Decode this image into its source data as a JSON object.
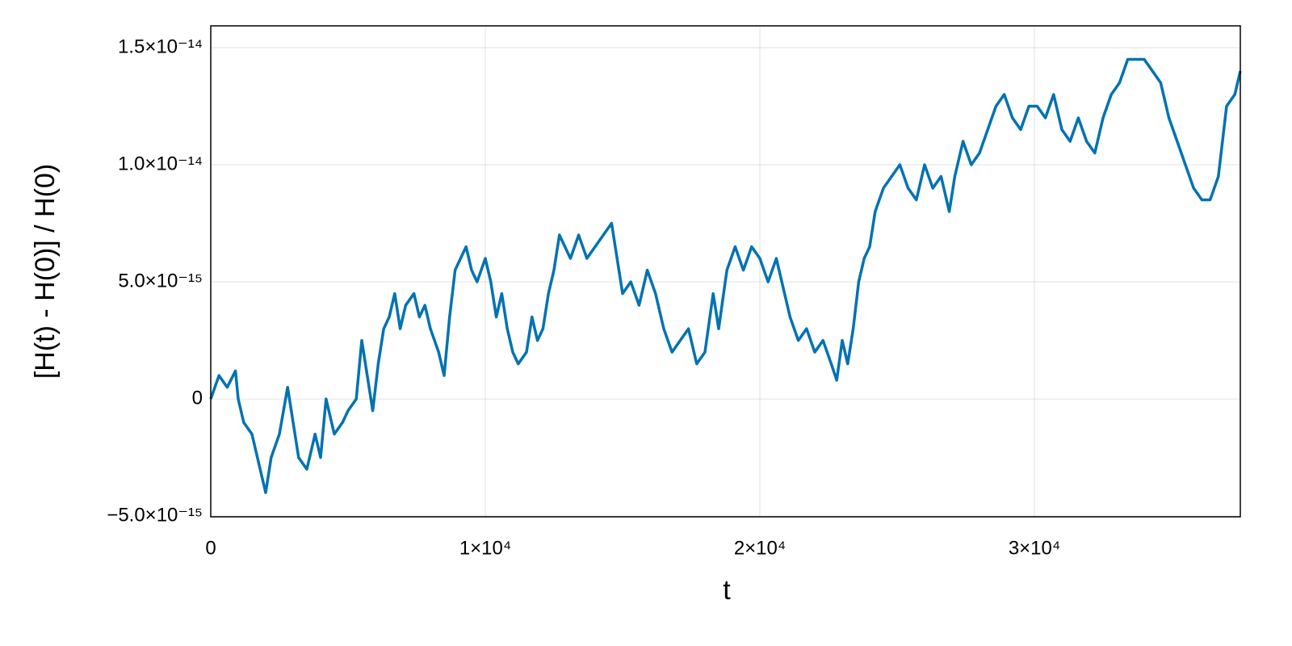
{
  "chart_data": {
    "type": "line",
    "xlabel": "t",
    "ylabel": "[H(t) - H(0)] / H(0)",
    "color": "#0072b2",
    "grid": true,
    "xlim": [
      0,
      37500
    ],
    "xticks": [
      0,
      {
        "value": 10000,
        "label": "1×10⁴"
      },
      {
        "value": 20000,
        "label": "2×10⁴"
      },
      {
        "value": 30000,
        "label": "3×10⁴"
      }
    ],
    "ylim": [
      -5.03e-15,
      1.593e-14
    ],
    "yticks": [
      {
        "value": -5e-15,
        "label": "−5.0×10⁻¹⁵"
      },
      0,
      {
        "value": 5e-15,
        "label": "5.0×10⁻¹⁵"
      },
      {
        "value": 1e-14,
        "label": "1.0×10⁻¹⁴"
      },
      {
        "value": 1.5e-14,
        "label": "1.5×10⁻¹⁴"
      }
    ],
    "x": [
      0,
      300,
      600,
      900,
      1000,
      1200,
      1500,
      1700,
      1900,
      2000,
      2200,
      2500,
      2800,
      3000,
      3200,
      3500,
      3800,
      4000,
      4200,
      4500,
      4800,
      5000,
      5300,
      5500,
      5700,
      5900,
      6100,
      6300,
      6500,
      6700,
      6900,
      7100,
      7400,
      7600,
      7800,
      8000,
      8300,
      8500,
      8700,
      8900,
      9100,
      9300,
      9500,
      9700,
      10000,
      10200,
      10400,
      10600,
      10800,
      11000,
      11200,
      11500,
      11700,
      11900,
      12100,
      12300,
      12500,
      12700,
      12900,
      13100,
      13400,
      13700,
      14000,
      14300,
      14600,
      14800,
      15000,
      15300,
      15600,
      15900,
      16200,
      16500,
      16800,
      17100,
      17400,
      17700,
      18000,
      18300,
      18500,
      18800,
      19100,
      19400,
      19700,
      20000,
      20300,
      20600,
      20900,
      21100,
      21400,
      21700,
      22000,
      22300,
      22600,
      22800,
      23000,
      23200,
      23400,
      23600,
      23800,
      24000,
      24200,
      24500,
      24800,
      25100,
      25400,
      25700,
      26000,
      26300,
      26600,
      26900,
      27100,
      27400,
      27700,
      28000,
      28300,
      28600,
      28900,
      29200,
      29500,
      29800,
      30100,
      30400,
      30700,
      31000,
      31300,
      31600,
      31900,
      32200,
      32500,
      32800,
      33100,
      33400,
      33700,
      34000,
      34300,
      34600,
      34900,
      35200,
      35500,
      35800,
      36100,
      36400,
      36700,
      37000,
      37300,
      37500
    ],
    "values": [
      0,
      1e-15,
      5e-16,
      1.2e-15,
      0,
      -1e-15,
      -1.5e-15,
      -2.5e-15,
      -3.5e-15,
      -4e-15,
      -2.5e-15,
      -1.5e-15,
      5e-16,
      -1e-15,
      -2.5e-15,
      -3e-15,
      -1.5e-15,
      -2.5e-15,
      0,
      -1.5e-15,
      -1e-15,
      -5e-16,
      0,
      2.5e-15,
      1e-15,
      -5e-16,
      1.5e-15,
      3e-15,
      3.5e-15,
      4.5e-15,
      3e-15,
      4e-15,
      4.5e-15,
      3.5e-15,
      4e-15,
      3e-15,
      2e-15,
      1e-15,
      3.5e-15,
      5.5e-15,
      6e-15,
      6.5e-15,
      5.5e-15,
      5e-15,
      6e-15,
      5e-15,
      3.5e-15,
      4.5e-15,
      3e-15,
      2e-15,
      1.5e-15,
      2e-15,
      3.5e-15,
      2.5e-15,
      3e-15,
      4.5e-15,
      5.5e-15,
      7e-15,
      6.5e-15,
      6e-15,
      7e-15,
      6e-15,
      6.5e-15,
      7e-15,
      7.5e-15,
      6e-15,
      4.5e-15,
      5e-15,
      4e-15,
      5.5e-15,
      4.5e-15,
      3e-15,
      2e-15,
      2.5e-15,
      3e-15,
      1.5e-15,
      2e-15,
      4.5e-15,
      3e-15,
      5.5e-15,
      6.5e-15,
      5.5e-15,
      6.5e-15,
      6e-15,
      5e-15,
      6e-15,
      4.5e-15,
      3.5e-15,
      2.5e-15,
      3e-15,
      2e-15,
      2.5e-15,
      1.5e-15,
      8e-16,
      2.5e-15,
      1.5e-15,
      3e-15,
      5e-15,
      6e-15,
      6.5e-15,
      8e-15,
      9e-15,
      9.5e-15,
      1e-14,
      9e-15,
      8.5e-15,
      1e-14,
      9e-15,
      9.5e-15,
      8e-15,
      9.5e-15,
      1.1e-14,
      1e-14,
      1.05e-14,
      1.15e-14,
      1.25e-14,
      1.3e-14,
      1.2e-14,
      1.15e-14,
      1.25e-14,
      1.25e-14,
      1.2e-14,
      1.3e-14,
      1.15e-14,
      1.1e-14,
      1.2e-14,
      1.1e-14,
      1.05e-14,
      1.2e-14,
      1.3e-14,
      1.35e-14,
      1.45e-14,
      1.45e-14,
      1.45e-14,
      1.4e-14,
      1.35e-14,
      1.2e-14,
      1.1e-14,
      1e-14,
      9e-15,
      8.5e-15,
      8.5e-15,
      9.5e-15,
      1.25e-14,
      1.3e-14,
      1.4e-14
    ]
  }
}
